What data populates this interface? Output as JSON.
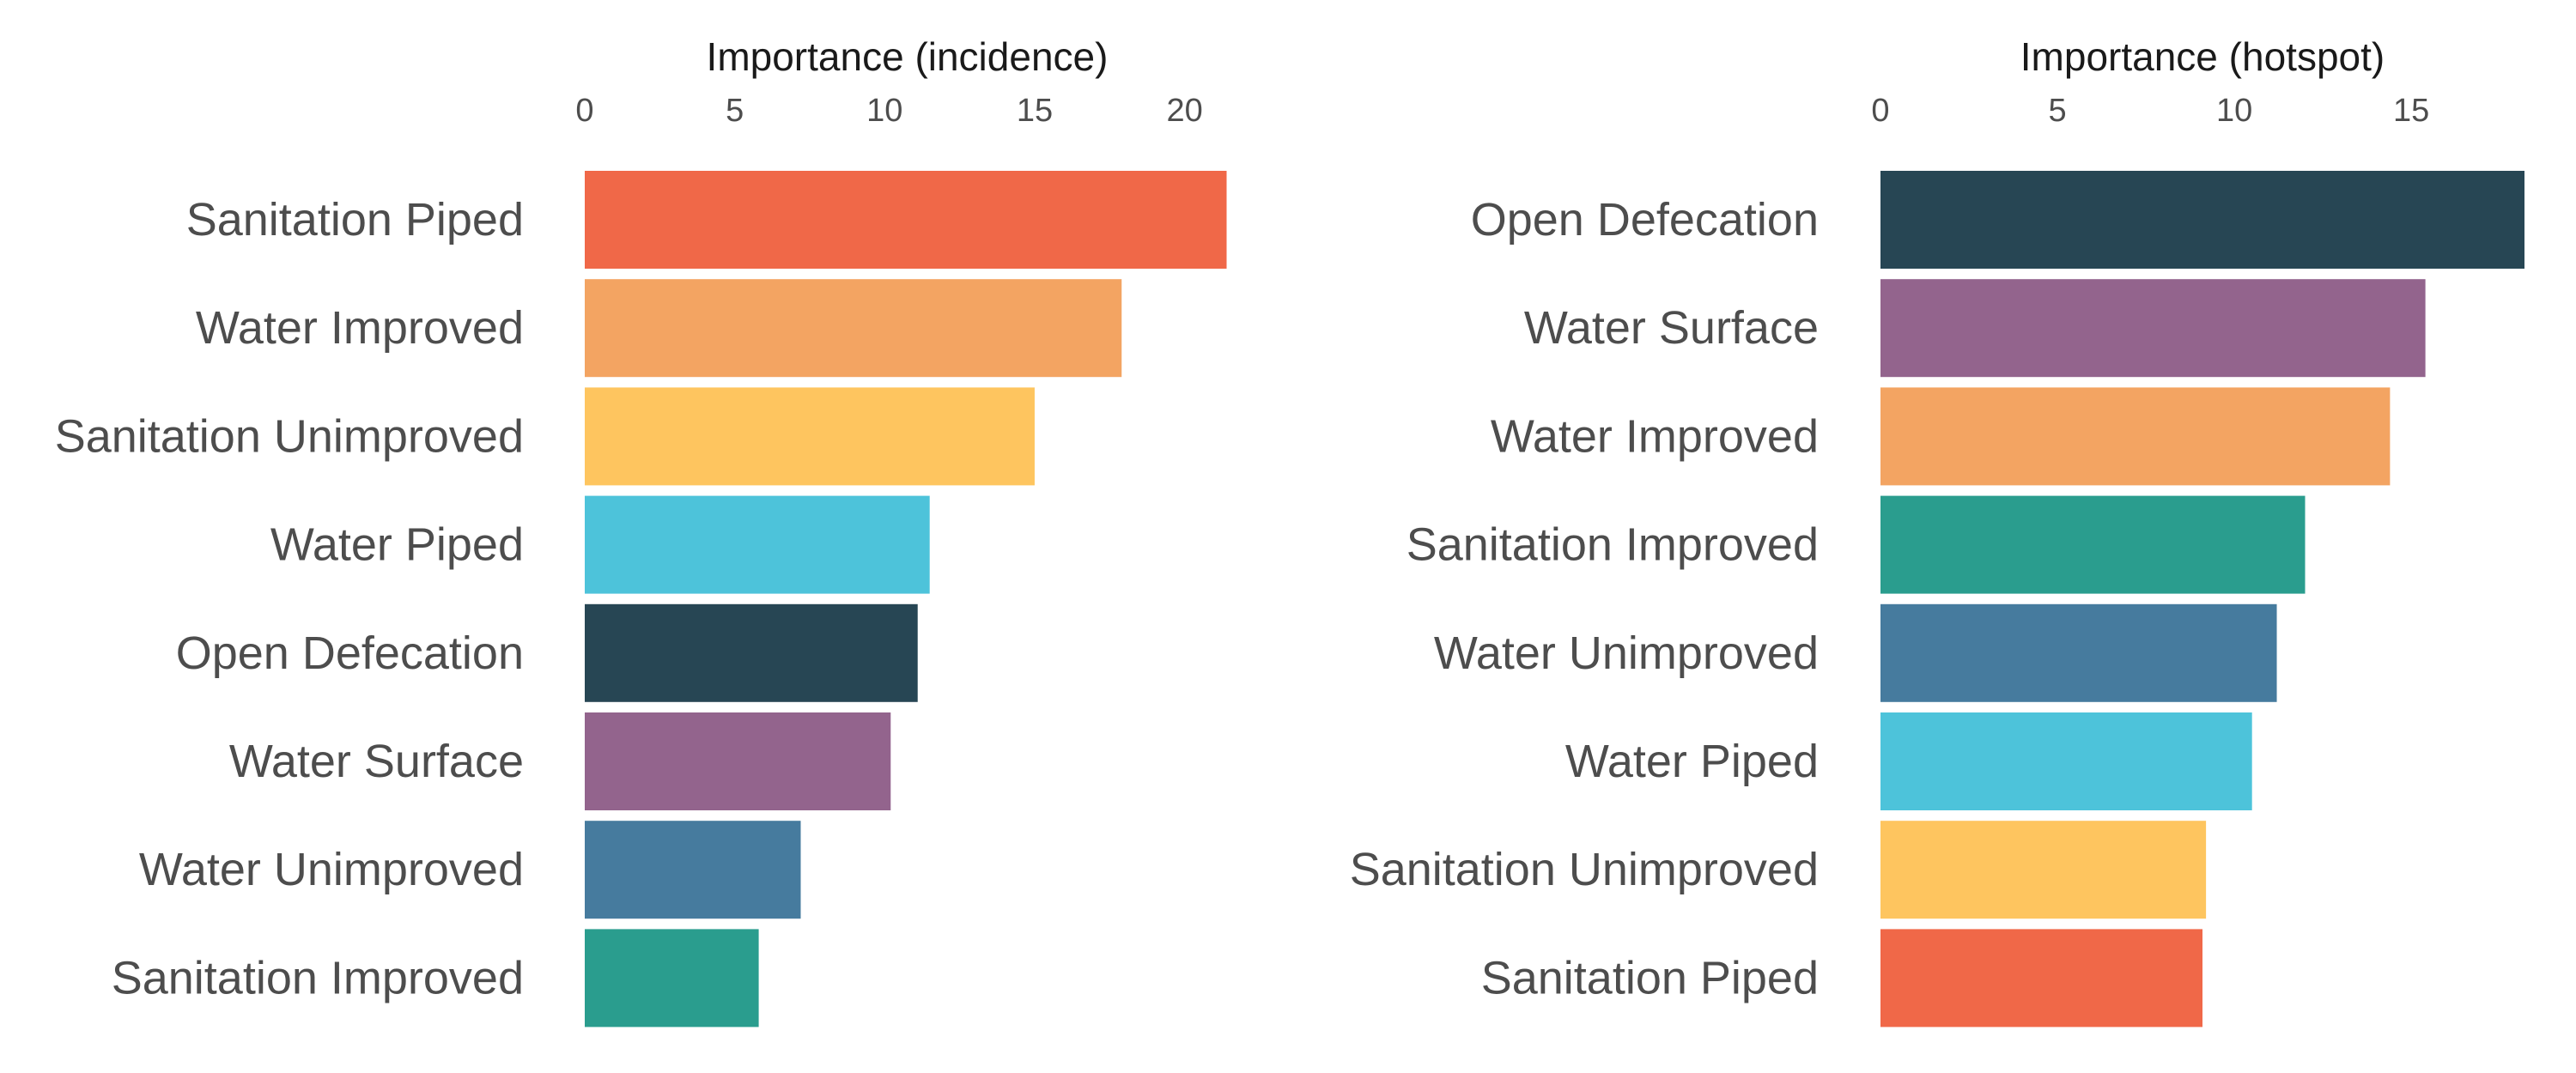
{
  "chart_data": [
    {
      "type": "bar",
      "orientation": "horizontal",
      "xlabel": "Importance (incidence)",
      "x_axis_position": "top",
      "xlim": [
        0,
        21.5
      ],
      "xticks": [
        0,
        5,
        10,
        15,
        20
      ],
      "grid": false,
      "categories": [
        "Sanitation Piped",
        "Water Improved",
        "Sanitation Unimproved",
        "Water Piped",
        "Open Defecation",
        "Water Surface",
        "Water Unimproved",
        "Sanitation Improved"
      ],
      "values": [
        21.4,
        17.9,
        15.0,
        11.5,
        11.1,
        10.2,
        7.2,
        5.8
      ],
      "colors": [
        "#f06848",
        "#f3a462",
        "#fec55f",
        "#4dc3da",
        "#274654",
        "#93648d",
        "#467b9e",
        "#2a9d8e"
      ]
    },
    {
      "type": "bar",
      "orientation": "horizontal",
      "xlabel": "Importance (hotspot)",
      "x_axis_position": "top",
      "xlim": [
        0,
        18.2
      ],
      "xticks": [
        0,
        5,
        10,
        15
      ],
      "grid": false,
      "categories": [
        "Open Defecation",
        "Water Surface",
        "Water Improved",
        "Sanitation Improved",
        "Water Unimproved",
        "Water Piped",
        "Sanitation Unimproved",
        "Sanitation Piped"
      ],
      "values": [
        18.2,
        15.4,
        14.4,
        12.0,
        11.2,
        10.5,
        9.2,
        9.1
      ],
      "colors": [
        "#274654",
        "#93648d",
        "#f3a462",
        "#2a9d8e",
        "#467b9e",
        "#4dc3da",
        "#fec55f",
        "#f06848"
      ]
    }
  ]
}
